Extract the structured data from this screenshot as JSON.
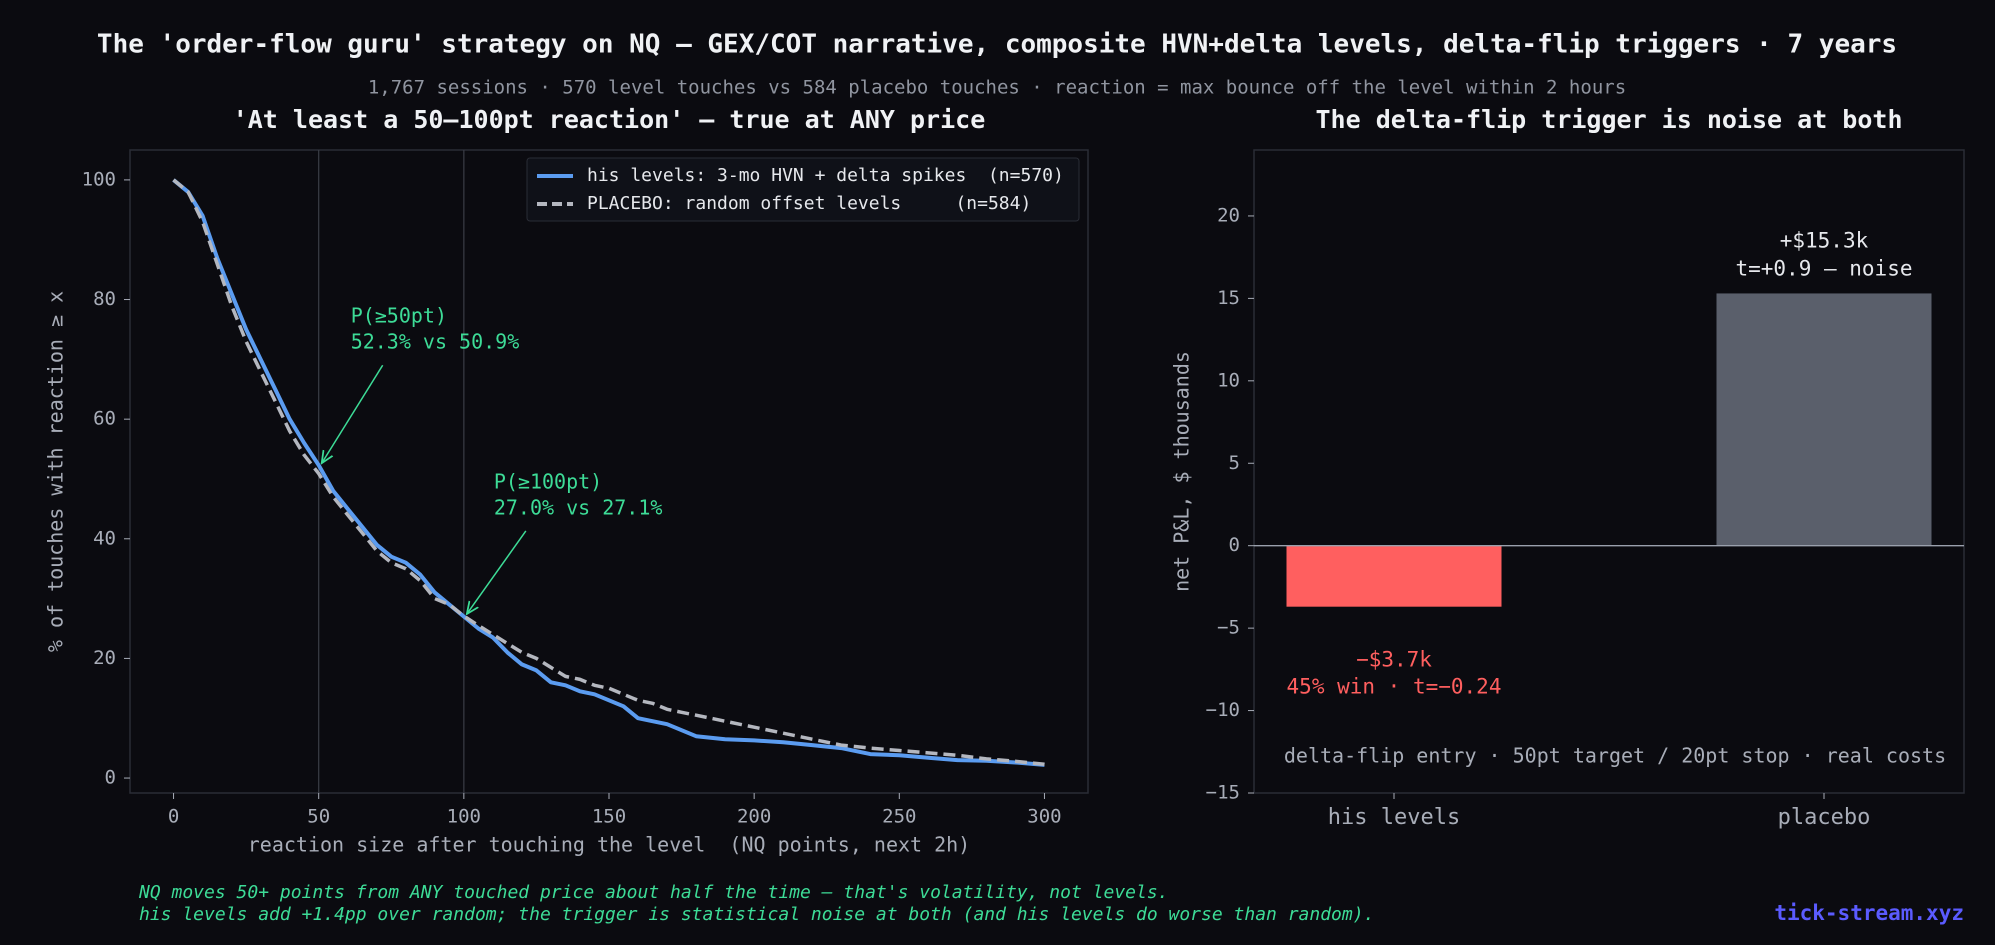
{
  "title": "The 'order-flow guru' strategy on NQ — GEX/COT narrative, composite HVN+delta levels, delta-flip triggers · 7 years",
  "subtitle": "1,767 sessions · 570 level touches vs 584 placebo touches · reaction = max bounce off the level within 2 hours",
  "footer": [
    "NQ moves 50+ points from ANY touched price about half the time — that's volatility, not levels.",
    "his levels add +1.4pp over random; the trigger is statistical noise at both (and his levels do worse than random)."
  ],
  "brand": "tick-stream.xyz",
  "chart_data": [
    {
      "type": "line",
      "title": "'At least a 50–100pt reaction' — true at ANY price",
      "xlabel": "reaction size after touching the level  (NQ points, next 2h)",
      "ylabel": "% of touches with reaction ≥ x",
      "x": [
        0,
        5,
        10,
        15,
        20,
        25,
        30,
        35,
        40,
        45,
        50,
        55,
        60,
        65,
        70,
        75,
        80,
        85,
        90,
        95,
        100,
        105,
        110,
        115,
        120,
        125,
        130,
        135,
        140,
        145,
        150,
        155,
        160,
        165,
        170,
        175,
        180,
        190,
        200,
        210,
        220,
        230,
        240,
        250,
        260,
        270,
        280,
        290,
        300
      ],
      "xlim": [
        -15,
        315
      ],
      "ylim": [
        -2.5,
        105
      ],
      "xticks": [
        0,
        50,
        100,
        150,
        200,
        250,
        300
      ],
      "yticks": [
        0,
        20,
        40,
        60,
        80,
        100
      ],
      "vlines": [
        50,
        100
      ],
      "legend": "upper right",
      "series": [
        {
          "name": "his levels: 3-mo HVN + delta spikes  (n=570)",
          "color": "#5b9cf0",
          "dashed": false,
          "values": [
            100,
            98,
            94,
            87,
            81,
            75,
            70,
            65,
            60,
            56,
            52.3,
            48,
            45,
            42,
            39,
            37,
            36,
            34,
            31,
            29,
            27,
            25,
            23.5,
            21,
            19,
            18,
            16,
            15.5,
            14.5,
            14,
            13,
            12,
            10,
            9.5,
            9,
            8,
            7,
            6.5,
            6.3,
            6,
            5.5,
            5,
            4,
            3.8,
            3.4,
            3,
            2.9,
            2.6,
            2.2
          ]
        },
        {
          "name": "PLACEBO: random offset levels     (n=584)",
          "color": "#b4b7bf",
          "dashed": true,
          "values": [
            100,
            98,
            93,
            86,
            79,
            73,
            68,
            63,
            58,
            54,
            50.9,
            47,
            44,
            41,
            38,
            36,
            35,
            33,
            30,
            29,
            27.1,
            25.5,
            24,
            22.5,
            21,
            20,
            18.5,
            17,
            16.5,
            15.5,
            15,
            14,
            13,
            12.5,
            11.5,
            11,
            10.5,
            9.5,
            8.5,
            7.5,
            6.5,
            5.5,
            5,
            4.6,
            4.2,
            3.8,
            3.2,
            2.8,
            2.3
          ]
        }
      ],
      "annotations": [
        {
          "lines": [
            "P(≥50pt)",
            "52.3% vs 50.9%"
          ],
          "x": 50,
          "y": 52.3
        },
        {
          "lines": [
            "P(≥100pt)",
            "27.0% vs 27.1%"
          ],
          "x": 100,
          "y": 27.1
        }
      ]
    },
    {
      "type": "bar",
      "title": "The delta-flip trigger is noise at both",
      "ylabel": "net P&L, $ thousands",
      "categories": [
        "his levels",
        "placebo"
      ],
      "values": [
        -3.7,
        15.3
      ],
      "value_labels": [
        "−$3.7k",
        "+$15.3k"
      ],
      "notes": [
        "45% win · t=−0.24",
        "t=+0.9 — noise"
      ],
      "colors": [
        "#ff5f5f",
        "#5a5f6b"
      ],
      "label_colors": [
        "#ff5f5f",
        "#e6e8ec"
      ],
      "ylim": [
        -15,
        24
      ],
      "yticks": [
        {
          "value": -15,
          "label": "−15"
        },
        {
          "value": -10,
          "label": "−10"
        },
        {
          "value": -5,
          "label": "−5"
        },
        0,
        5,
        10,
        15,
        20
      ],
      "caption": "delta-flip entry · 50pt target / 20pt stop · real costs"
    }
  ]
}
